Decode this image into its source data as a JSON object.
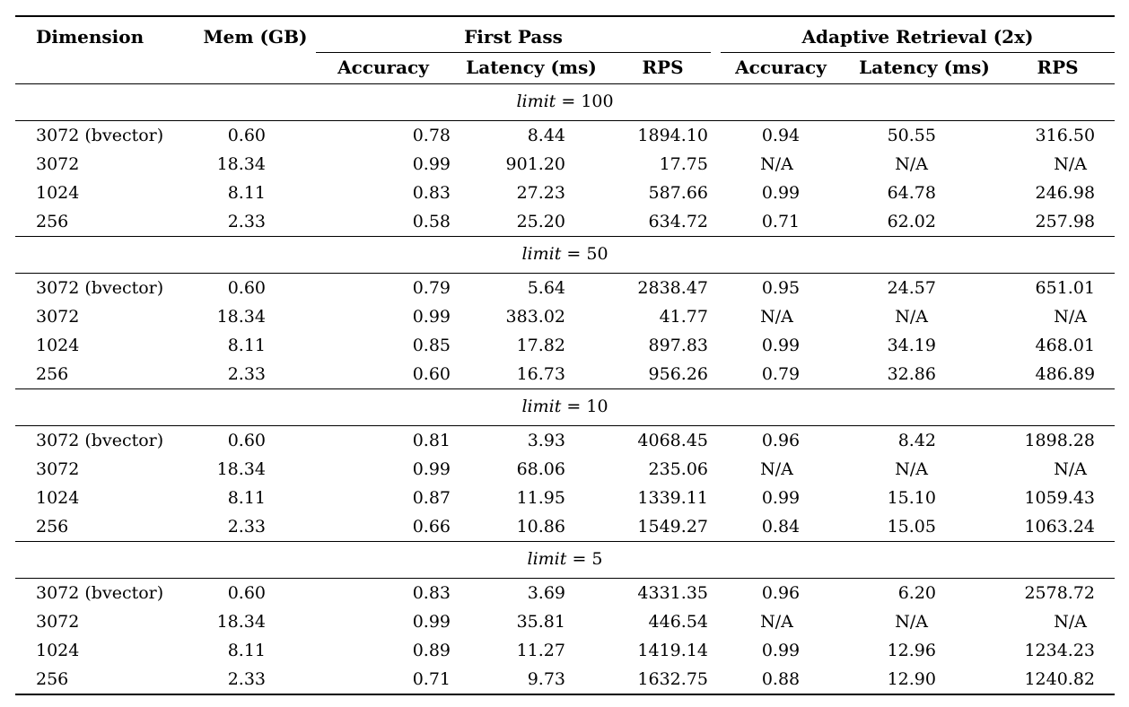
{
  "page": {
    "background": "#ffffff",
    "text_color": "#000000"
  },
  "table": {
    "header": {
      "dimension": "Dimension",
      "mem": "Mem (GB)",
      "groups": [
        {
          "label": "First Pass",
          "columns": [
            "Accuracy",
            "Latency (ms)",
            "RPS"
          ]
        },
        {
          "label": "Adaptive Retrieval (2x)",
          "columns": [
            "Accuracy",
            "Latency (ms)",
            "RPS"
          ]
        }
      ]
    },
    "sections": [
      {
        "limit_var": "limit",
        "limit_eq": "= 100",
        "rows": [
          [
            "3072 (bvector)",
            "0.60",
            "0.78",
            "8.44",
            "1894.10",
            "0.94",
            "50.55",
            "316.50"
          ],
          [
            "3072",
            "18.34",
            "0.99",
            "901.20",
            "17.75",
            "N/A",
            "N/A",
            "N/A"
          ],
          [
            "1024",
            "8.11",
            "0.83",
            "27.23",
            "587.66",
            "0.99",
            "64.78",
            "246.98"
          ],
          [
            "256",
            "2.33",
            "0.58",
            "25.20",
            "634.72",
            "0.71",
            "62.02",
            "257.98"
          ]
        ]
      },
      {
        "limit_var": "limit",
        "limit_eq": "= 50",
        "rows": [
          [
            "3072 (bvector)",
            "0.60",
            "0.79",
            "5.64",
            "2838.47",
            "0.95",
            "24.57",
            "651.01"
          ],
          [
            "3072",
            "18.34",
            "0.99",
            "383.02",
            "41.77",
            "N/A",
            "N/A",
            "N/A"
          ],
          [
            "1024",
            "8.11",
            "0.85",
            "17.82",
            "897.83",
            "0.99",
            "34.19",
            "468.01"
          ],
          [
            "256",
            "2.33",
            "0.60",
            "16.73",
            "956.26",
            "0.79",
            "32.86",
            "486.89"
          ]
        ]
      },
      {
        "limit_var": "limit",
        "limit_eq": "= 10",
        "rows": [
          [
            "3072 (bvector)",
            "0.60",
            "0.81",
            "3.93",
            "4068.45",
            "0.96",
            "8.42",
            "1898.28"
          ],
          [
            "3072",
            "18.34",
            "0.99",
            "68.06",
            "235.06",
            "N/A",
            "N/A",
            "N/A"
          ],
          [
            "1024",
            "8.11",
            "0.87",
            "11.95",
            "1339.11",
            "0.99",
            "15.10",
            "1059.43"
          ],
          [
            "256",
            "2.33",
            "0.66",
            "10.86",
            "1549.27",
            "0.84",
            "15.05",
            "1063.24"
          ]
        ]
      },
      {
        "limit_var": "limit",
        "limit_eq": "= 5",
        "rows": [
          [
            "3072 (bvector)",
            "0.60",
            "0.83",
            "3.69",
            "4331.35",
            "0.96",
            "6.20",
            "2578.72"
          ],
          [
            "3072",
            "18.34",
            "0.99",
            "35.81",
            "446.54",
            "N/A",
            "N/A",
            "N/A"
          ],
          [
            "1024",
            "8.11",
            "0.89",
            "11.27",
            "1419.14",
            "0.99",
            "12.96",
            "1234.23"
          ],
          [
            "256",
            "2.33",
            "0.71",
            "9.73",
            "1632.75",
            "0.88",
            "12.90",
            "1240.82"
          ]
        ]
      }
    ]
  }
}
